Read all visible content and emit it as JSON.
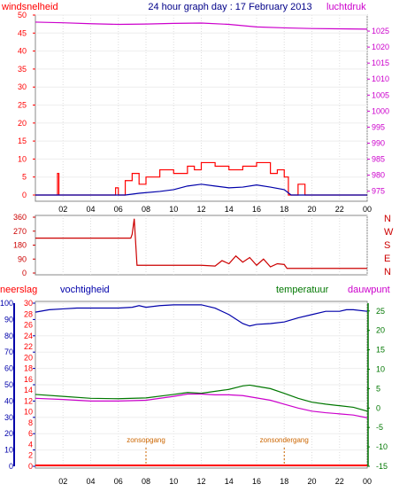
{
  "title": "24 hour graph day : 17 February 2013",
  "colors": {
    "wind": "#ff0000",
    "pressure": "#cc00cc",
    "direction": "#cc0000",
    "humidity": "#0000aa",
    "temperature": "#007700",
    "dewpoint": "#cc00cc",
    "rain": "#ff0000",
    "sun_markers": "#cc6600",
    "frame": "#888888"
  },
  "chart_data": [
    {
      "type": "line",
      "id": "wind-pressure",
      "left_label": "windsnelheid",
      "right_label": "luchtdruk",
      "x_ticks": [
        "02",
        "04",
        "06",
        "08",
        "10",
        "12",
        "14",
        "16",
        "18",
        "20",
        "22",
        "00"
      ],
      "left_axis": {
        "ticks": [
          "0",
          "5",
          "10",
          "15",
          "20",
          "25",
          "30",
          "35",
          "40",
          "45",
          "50"
        ],
        "ylim": [
          0,
          50
        ]
      },
      "right_axis": {
        "ticks": [
          "975",
          "980",
          "985",
          "990",
          "995",
          "1000",
          "1005",
          "1010",
          "1015",
          "1020",
          "1025"
        ],
        "ylim": [
          973.8,
          1030
        ]
      },
      "series": [
        {
          "name": "windsnelheid",
          "x": [
            0,
            1.5,
            1.6,
            1.7,
            5.7,
            5.8,
            6.0,
            6.5,
            7.0,
            7.5,
            8.0,
            9.0,
            10.0,
            11.0,
            11.5,
            12.0,
            13.0,
            14.0,
            15.0,
            16.0,
            17.0,
            17.5,
            18.0,
            18.3,
            19.0,
            19.5,
            20.0,
            24.0
          ],
          "y": [
            0,
            0,
            6,
            0,
            0,
            2,
            0,
            4,
            6,
            3,
            5,
            7,
            6,
            8,
            7,
            9,
            8,
            7,
            8,
            9,
            6,
            7,
            5,
            0,
            3,
            0,
            0,
            0
          ]
        },
        {
          "name": "gemiddelde wind",
          "x": [
            0,
            6.5,
            7.5,
            9.0,
            10.0,
            11.0,
            12.0,
            13.0,
            14.0,
            15.0,
            16.0,
            17.0,
            18.0,
            18.5,
            24.0
          ],
          "y": [
            0,
            0,
            0.5,
            1,
            1.5,
            2.5,
            3,
            2.5,
            2,
            2.2,
            2.8,
            2.2,
            1.5,
            0,
            0
          ]
        },
        {
          "name": "luchtdruk",
          "x": [
            0,
            2,
            4,
            6,
            8,
            10,
            12,
            14,
            16,
            18,
            20,
            22,
            24
          ],
          "y": [
            1027.8,
            1027.6,
            1027.3,
            1027.1,
            1027.2,
            1027.4,
            1027.5,
            1027.1,
            1026.3,
            1026.0,
            1025.8,
            1025.7,
            1025.6
          ]
        }
      ]
    },
    {
      "type": "line",
      "id": "wind-direction",
      "x_ticks": [
        "02",
        "04",
        "06",
        "08",
        "10",
        "12",
        "14",
        "16",
        "18",
        "20",
        "22",
        "00"
      ],
      "left_axis": {
        "ticks": [
          "0",
          "90",
          "180",
          "270",
          "360"
        ],
        "ylim": [
          0,
          360
        ]
      },
      "compass_labels": [
        "N",
        "W",
        "S",
        "E",
        "N"
      ],
      "series": [
        {
          "name": "windrichting",
          "x": [
            0,
            6.9,
            7.0,
            7.15,
            7.35,
            12.0,
            13.0,
            13.5,
            14.0,
            14.5,
            15.0,
            15.5,
            16.0,
            16.5,
            17.0,
            17.5,
            18.0,
            18.2,
            24.0
          ],
          "y": [
            225,
            225,
            250,
            350,
            50,
            50,
            45,
            80,
            60,
            110,
            70,
            100,
            50,
            90,
            40,
            60,
            55,
            30,
            30
          ]
        }
      ]
    },
    {
      "type": "line",
      "id": "climate",
      "labels": {
        "rain": "neerslag",
        "humidity": "vochtigheid",
        "temperature": "temperatuur",
        "dewpoint": "dauwpunt",
        "sunrise": "zonsopgang",
        "sunset": "zonsondergang"
      },
      "sunrise_hour": 8,
      "sunset_hour": 18,
      "x_ticks": [
        "02",
        "04",
        "06",
        "08",
        "10",
        "12",
        "14",
        "16",
        "18",
        "20",
        "22",
        "00"
      ],
      "humidity_axis": {
        "ticks": [
          "0",
          "10",
          "20",
          "30",
          "40",
          "50",
          "60",
          "70",
          "80",
          "90",
          "100"
        ],
        "ylim": [
          0,
          100
        ]
      },
      "rain_axis": {
        "ticks": [
          "0",
          "2",
          "4",
          "6",
          "8",
          "10",
          "12",
          "14",
          "16",
          "18",
          "20",
          "22",
          "24",
          "26",
          "28",
          "30"
        ],
        "ylim": [
          0,
          30
        ]
      },
      "temp_axis": {
        "ticks": [
          "-15",
          "-10",
          "-5",
          "0",
          "5",
          "10",
          "15",
          "20",
          "25"
        ],
        "ylim": [
          -15,
          27
        ]
      },
      "series": [
        {
          "name": "vochtigheid",
          "x": [
            0,
            1,
            2,
            3,
            4,
            5,
            6,
            7,
            7.5,
            8,
            9,
            10,
            11,
            12,
            13,
            14,
            15,
            15.5,
            16,
            17,
            18,
            19,
            20,
            21,
            22,
            22.5,
            23,
            24
          ],
          "y": [
            94.5,
            96,
            96.5,
            97,
            97,
            97,
            97,
            97.5,
            98.5,
            97.5,
            98.5,
            99,
            99,
            99,
            97,
            93,
            87.5,
            86,
            87,
            87.5,
            88.5,
            91,
            93,
            95,
            95,
            96,
            96,
            95
          ]
        },
        {
          "name": "temperatuur",
          "x": [
            0,
            2,
            4,
            6,
            8,
            10,
            11,
            12,
            14,
            15,
            15.5,
            16,
            17,
            18,
            19,
            20,
            21,
            22,
            23,
            24
          ],
          "y": [
            3.5,
            3.0,
            2.5,
            2.4,
            2.6,
            3.5,
            4.0,
            3.8,
            4.8,
            5.7,
            5.9,
            5.6,
            5.0,
            3.8,
            2.5,
            1.5,
            1.0,
            0.6,
            0.2,
            -0.8
          ]
        },
        {
          "name": "dauwpunt",
          "x": [
            0,
            2,
            4,
            6,
            8,
            10,
            11,
            12,
            13,
            14,
            15,
            16,
            17,
            18,
            19,
            20,
            21,
            22,
            23,
            24
          ],
          "y": [
            2.5,
            2.2,
            1.8,
            1.8,
            2.0,
            3.0,
            3.6,
            3.6,
            3.4,
            3.4,
            3.2,
            2.6,
            2.0,
            1.0,
            0,
            -0.8,
            -1.2,
            -1.5,
            -1.8,
            -2.5
          ]
        },
        {
          "name": "neerslag",
          "x": [
            0,
            24
          ],
          "y": [
            0,
            0
          ]
        }
      ]
    }
  ]
}
